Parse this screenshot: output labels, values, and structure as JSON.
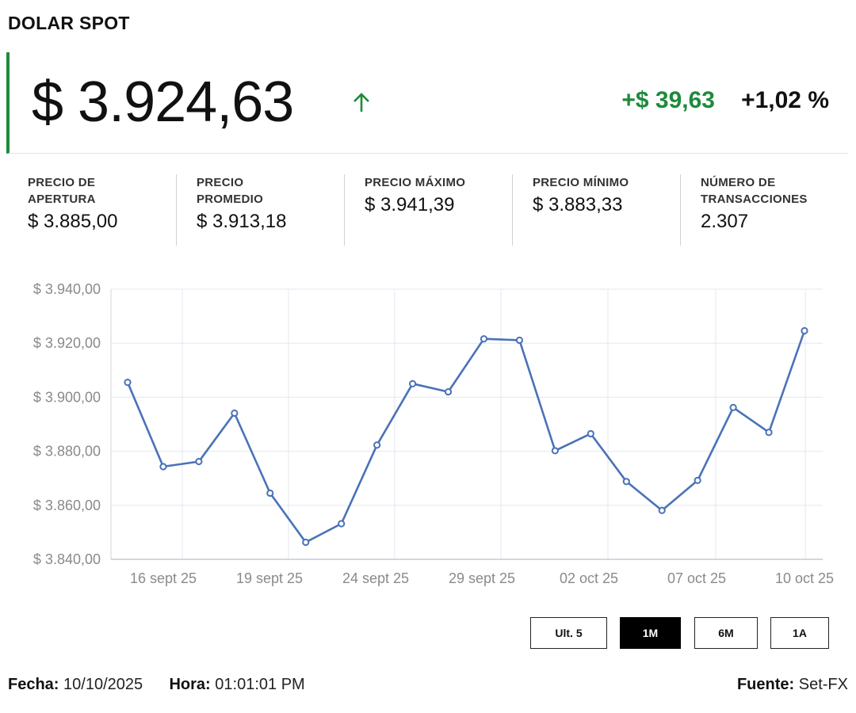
{
  "title": "DOLAR SPOT",
  "price": "$ 3.924,63",
  "change_abs": "+$ 39,63",
  "change_pct": "+1,02 %",
  "colors": {
    "up": "#1e8a3c",
    "line": "#4a72b8",
    "grid": "#e2e8f0"
  },
  "stats": [
    {
      "label": "PRECIO DE\nAPERTURA",
      "value": "$ 3.885,00"
    },
    {
      "label": "PRECIO\nPROMEDIO",
      "value": "$ 3.913,18"
    },
    {
      "label": "PRECIO MÁXIMO",
      "value": "$ 3.941,39"
    },
    {
      "label": "PRECIO MÍNIMO",
      "value": "$ 3.883,33"
    },
    {
      "label": "NÚMERO DE\nTRANSACCIONES",
      "value": "2.307"
    }
  ],
  "ranges": {
    "buttons": [
      "Ult. 5",
      "1M",
      "6M",
      "1A"
    ],
    "active": "1M"
  },
  "footer": {
    "date_label": "Fecha:",
    "date_value": "10/10/2025",
    "time_label": "Hora:",
    "time_value": "01:01:01 PM",
    "source_label": "Fuente:",
    "source_value": "Set-FX"
  },
  "chart_data": {
    "type": "line",
    "series": [
      {
        "name": "Dólar spot",
        "values": [
          3905.5,
          3874.3,
          3876.2,
          3894.1,
          3864.5,
          3846.3,
          3853.2,
          3882.3,
          3905.0,
          3902.0,
          3921.6,
          3921.1,
          3880.2,
          3886.5,
          3868.8,
          3858.1,
          3869.2,
          3896.2,
          3887.0,
          3924.6
        ]
      }
    ],
    "x_ticks": [
      {
        "label": "16 sept 25",
        "index": 0.7
      },
      {
        "label": "19 sept 25",
        "index": 2.7
      },
      {
        "label": "24 sept 25",
        "index": 4.7
      },
      {
        "label": "29 sept 25",
        "index": 6.7
      },
      {
        "label": "02 oct 25",
        "index": 8.7
      },
      {
        "label": "07 oct 25",
        "index": 10.7
      },
      {
        "label": "10 oct 25",
        "index": 12.7
      }
    ],
    "y_ticks": [
      "$ 3.940,00",
      "$ 3.920,00",
      "$ 3.900,00",
      "$ 3.880,00",
      "$ 3.860,00",
      "$ 3.840,00"
    ],
    "y_tick_values": [
      3940,
      3920,
      3900,
      3880,
      3860,
      3840
    ],
    "ylim": [
      3840,
      3940
    ],
    "grid": true
  }
}
